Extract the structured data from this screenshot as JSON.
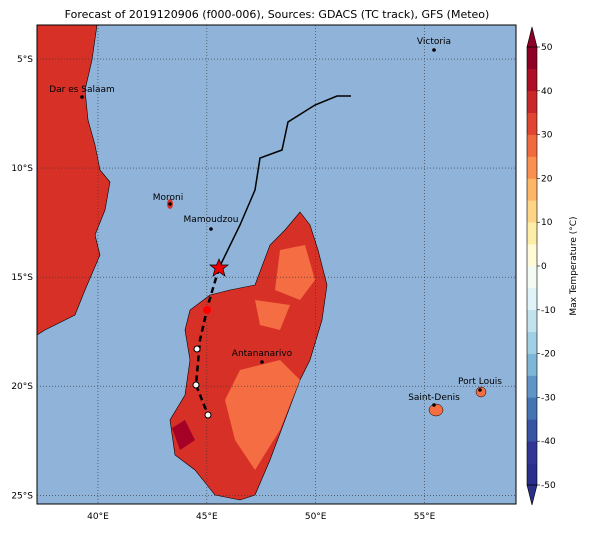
{
  "title": "Forecast of 2019120906 (f000-006), Sources: GDACS (TC track), GFS (Meteo)",
  "map": {
    "lonlim": [
      37.2,
      59.2
    ],
    "latlim": [
      -3.44,
      -25.4
    ],
    "lonticks": [
      {
        "value": 40,
        "label": "40°E"
      },
      {
        "value": 45,
        "label": "45°E"
      },
      {
        "value": 50,
        "label": "50°E"
      },
      {
        "value": 55,
        "label": "55°E"
      }
    ],
    "latticks": [
      {
        "value": -5,
        "label": "5°S"
      },
      {
        "value": -10,
        "label": "10°S"
      },
      {
        "value": -15,
        "label": "15°S"
      },
      {
        "value": -20,
        "label": "20°S"
      },
      {
        "value": -25,
        "label": "25°S"
      }
    ],
    "grid": true,
    "cities": [
      "Victoria",
      "Dar es Salaam",
      "Moroni",
      "Mamoudzou",
      "Antananarivo",
      "Saint-Denis",
      "Port Louis"
    ]
  },
  "colorbar": {
    "label": "Max Temperature (°C)",
    "lim": [
      -50,
      50
    ],
    "ticks": [
      50,
      40,
      30,
      20,
      10,
      0,
      -10,
      -20,
      -30,
      -40,
      -50
    ],
    "colors": [
      "#2b2f8c",
      "#313695",
      "#3a54a4",
      "#4574b3",
      "#5e95c6",
      "#7eb6d7",
      "#a1cfe3",
      "#c2e3ee",
      "#e0f3f8",
      "#f3fbf3",
      "#fffbd6",
      "#feeda6",
      "#fed487",
      "#fdb567",
      "#f9904f",
      "#f16a3e",
      "#df4530",
      "#c9282a",
      "#ac0f26",
      "#8e0026"
    ]
  }
}
